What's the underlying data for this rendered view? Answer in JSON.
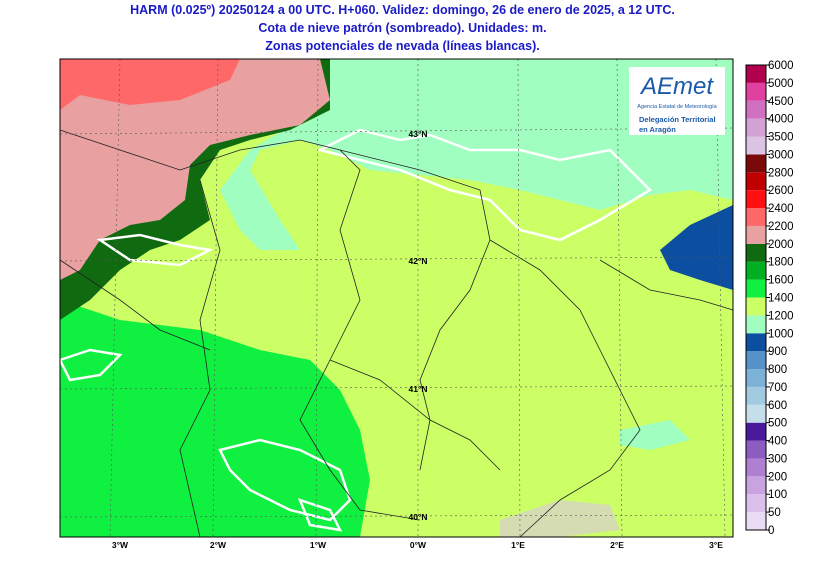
{
  "header": {
    "lines": [
      "HARM (0.025º) 20250124 a 00 UTC. H+060. Validez: domingo, 26 de enero de 2025, a 12 UTC.",
      "Cota de nieve patrón (sombreado). Unidades: m.",
      "Zonas potenciales de nevada (líneas blancas)."
    ]
  },
  "logo": {
    "name": "AEmet",
    "agency": "Agencia Estatal de Meteorología",
    "office": [
      "Delegación Territorial",
      "en Aragón"
    ]
  },
  "latitudes": [
    "43°N",
    "42°N",
    "41°N",
    "40°N"
  ],
  "longitudes": [
    "3°W",
    "2°W",
    "1°W",
    "0°W",
    "1°E",
    "2°E",
    "3°E"
  ],
  "colorbar": {
    "labels": [
      0,
      50,
      100,
      200,
      300,
      400,
      500,
      600,
      700,
      800,
      900,
      1000,
      1200,
      1400,
      1600,
      1800,
      2000,
      2200,
      2400,
      2600,
      2800,
      3000,
      3500,
      4000,
      4500,
      5000,
      6000
    ],
    "colors": [
      "#eadcf4",
      "#dcc0ec",
      "#c9a2e0",
      "#b07fd2",
      "#8c5cc0",
      "#4a1a9a",
      "#c4dfea",
      "#a2cbe2",
      "#7cb2d8",
      "#5492c8",
      "#0c4ea0",
      "#a0ffc0",
      "#ccff66",
      "#10f040",
      "#00b020",
      "#106a10",
      "#e8a0a0",
      "#ff6868",
      "#ff1010",
      "#c00000",
      "#7a0a0a",
      "#dcc4e4",
      "#d2a2d4",
      "#d070c0",
      "#e040a0",
      "#b0004e"
    ]
  }
}
